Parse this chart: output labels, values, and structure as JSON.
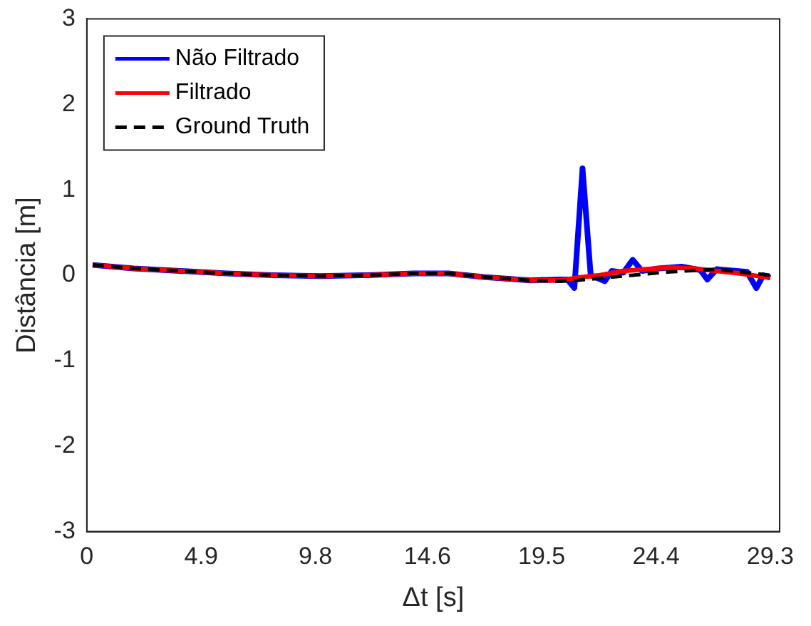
{
  "chart_data": {
    "type": "line",
    "xlabel": "Δt [s]",
    "ylabel": "Distância [m]",
    "xlim": [
      0,
      29.7
    ],
    "ylim": [
      -3,
      3
    ],
    "xticks": [
      0,
      4.9,
      9.8,
      14.6,
      19.5,
      24.4,
      29.3
    ],
    "yticks": [
      -3,
      -2,
      -1,
      0,
      1,
      2,
      3
    ],
    "grid": false,
    "legend": "top left",
    "marker": "none",
    "series": [
      {
        "name": "Não Filtrado",
        "color": "#0000ff",
        "line_style": "solid",
        "x": [
          0.25,
          2,
          4,
          6,
          8,
          10,
          12,
          14,
          15.5,
          17,
          19,
          20.3,
          20.6,
          20.9,
          21.25,
          21.6,
          22.2,
          22.5,
          23,
          23.4,
          23.8,
          24.5,
          25.5,
          26.3,
          26.6,
          27,
          28.3,
          28.7,
          29,
          29.3
        ],
        "values": [
          0.12,
          0.08,
          0.05,
          0.02,
          0,
          -0.01,
          0,
          0.02,
          0.02,
          -0.02,
          -0.06,
          -0.05,
          -0.05,
          -0.15,
          1.25,
          0,
          -0.07,
          0.05,
          0.03,
          0.18,
          0.05,
          0.08,
          0.1,
          0.06,
          -0.05,
          0.07,
          0.04,
          -0.15,
          0,
          -0.03
        ]
      },
      {
        "name": "Filtrado",
        "color": "#ff0000",
        "line_style": "solid",
        "x": [
          0.25,
          2,
          4,
          6,
          8,
          10,
          12,
          14,
          15.5,
          17,
          19,
          20.3,
          21,
          22,
          23,
          24,
          25,
          26,
          27,
          28,
          29.3
        ],
        "values": [
          0.12,
          0.08,
          0.05,
          0.02,
          0,
          -0.01,
          0,
          0.02,
          0.02,
          -0.02,
          -0.06,
          -0.06,
          -0.03,
          0,
          0.05,
          0.07,
          0.09,
          0.08,
          0.05,
          0.02,
          -0.03
        ]
      },
      {
        "name": "Ground Truth",
        "color": "#000000",
        "line_style": "dashed",
        "x": [
          0.25,
          2,
          4,
          6,
          8,
          10,
          12,
          14,
          15.5,
          17,
          19,
          20.3,
          21,
          23,
          25,
          27,
          29.3
        ],
        "values": [
          0.12,
          0.08,
          0.05,
          0.02,
          0,
          -0.01,
          0,
          0.02,
          0.02,
          -0.02,
          -0.06,
          -0.07,
          -0.06,
          -0.01,
          0.04,
          0.07,
          0
        ]
      }
    ]
  }
}
